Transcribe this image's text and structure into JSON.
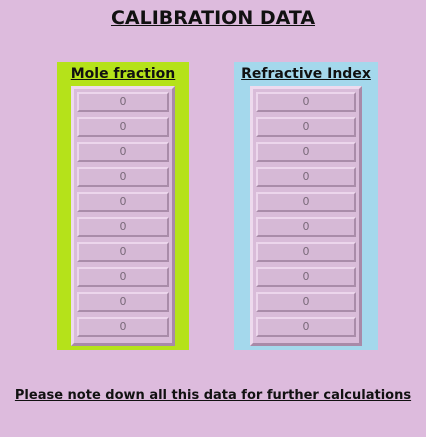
{
  "title": "CALIBRATION DATA",
  "mole_fraction": {
    "header": "Mole fraction",
    "values": [
      "0",
      "0",
      "0",
      "0",
      "0",
      "0",
      "0",
      "0",
      "0",
      "0"
    ]
  },
  "refractive_index": {
    "header": "Refractive Index",
    "values": [
      "0",
      "0",
      "0",
      "0",
      "0",
      "0",
      "0",
      "0",
      "0",
      "0"
    ]
  },
  "note": "Please note down all this data for further calculations",
  "colors": {
    "background": "#ddbbdd",
    "mole_panel": "#b5e21a",
    "refractive_panel": "#a4d8ec"
  }
}
